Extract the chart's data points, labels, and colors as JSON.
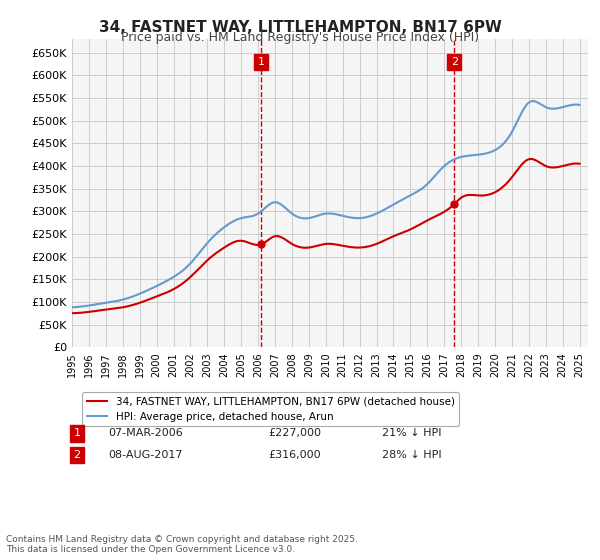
{
  "title": "34, FASTNET WAY, LITTLEHAMPTON, BN17 6PW",
  "subtitle": "Price paid vs. HM Land Registry's House Price Index (HPI)",
  "ylabel_prefix": "£",
  "yticks": [
    0,
    50000,
    100000,
    150000,
    200000,
    250000,
    300000,
    350000,
    400000,
    450000,
    500000,
    550000,
    600000,
    650000
  ],
  "ytick_labels": [
    "£0",
    "£50K",
    "£100K",
    "£150K",
    "£200K",
    "£250K",
    "£300K",
    "£350K",
    "£400K",
    "£450K",
    "£500K",
    "£550K",
    "£600K",
    "£650K"
  ],
  "xlim_start": 1995.0,
  "xlim_end": 2025.5,
  "ylim_min": 0,
  "ylim_max": 680000,
  "bg_color": "#ffffff",
  "grid_color": "#cccccc",
  "plot_bg_color": "#f5f5f5",
  "legend_label_red": "34, FASTNET WAY, LITTLEHAMPTON, BN17 6PW (detached house)",
  "legend_label_blue": "HPI: Average price, detached house, Arun",
  "footnote": "Contains HM Land Registry data © Crown copyright and database right 2025.\nThis data is licensed under the Open Government Licence v3.0.",
  "transaction1_label": "1",
  "transaction1_date": "07-MAR-2006",
  "transaction1_price": "£227,000",
  "transaction1_note": "21% ↓ HPI",
  "transaction1_year": 2006.18,
  "transaction1_price_val": 227000,
  "transaction2_label": "2",
  "transaction2_date": "08-AUG-2017",
  "transaction2_price": "£316,000",
  "transaction2_note": "28% ↓ HPI",
  "transaction2_year": 2017.6,
  "transaction2_price_val": 316000,
  "red_color": "#cc0000",
  "blue_color": "#6699cc",
  "marker_box_color": "#cc0000"
}
